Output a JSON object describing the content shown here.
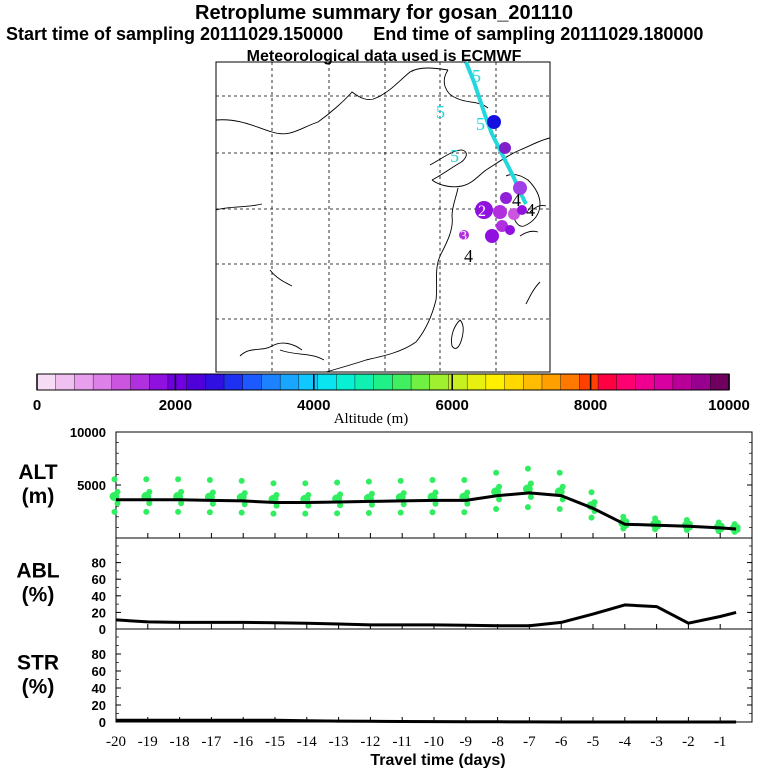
{
  "header": {
    "title": "Retroplume summary for gosan_201110",
    "start_label": "Start time of sampling 20111029.150000",
    "end_label": "End time of sampling 20111029.180000",
    "met_label": "Meteorological data used is ECMWF"
  },
  "map": {
    "levels": [
      {
        "label": "5",
        "kind": "track"
      },
      {
        "label": "5",
        "kind": "track"
      },
      {
        "label": "5",
        "kind": "track"
      },
      {
        "label": "5",
        "kind": "track"
      },
      {
        "label": "4",
        "kind": "mid"
      },
      {
        "label": "4",
        "kind": "mid"
      },
      {
        "label": "4",
        "kind": "low"
      },
      {
        "label": "3",
        "kind": "low"
      },
      {
        "label": "2",
        "kind": "low"
      }
    ],
    "track_color": "#22d8dc"
  },
  "colorbar": {
    "title": "Altitude (m)",
    "ticks": [
      "0",
      "2000",
      "4000",
      "6000",
      "8000",
      "10000"
    ],
    "min": 0,
    "max": 10000,
    "colors": [
      "#f7dcf5",
      "#f0c0f0",
      "#e8a0ee",
      "#dd80e8",
      "#cc55e0",
      "#b030e0",
      "#9010e0",
      "#7000e0",
      "#5000d8",
      "#3010e0",
      "#1e30f0",
      "#1c5aff",
      "#1c82ff",
      "#18a6ff",
      "#10c8ff",
      "#0ae4f0",
      "#08f0d4",
      "#10f0b0",
      "#20f088",
      "#40f060",
      "#70f040",
      "#a0f030",
      "#c8f020",
      "#e8f010",
      "#fff000",
      "#ffd800",
      "#ffbc00",
      "#ffa000",
      "#ff7800",
      "#ff4000",
      "#ff0040",
      "#ff0070",
      "#f00090",
      "#d800a0",
      "#b80098",
      "#980090",
      "#700060"
    ]
  },
  "chart_data": [
    {
      "type": "line",
      "name": "ALT",
      "title": "",
      "ylabel": "ALT\n(m)",
      "ylabel_lines": [
        "ALT",
        "(m)"
      ],
      "ylim": [
        0,
        10000
      ],
      "yticks": [
        "10000",
        "5000"
      ],
      "x": [
        -20,
        -19,
        -18,
        -17,
        -16,
        -15,
        -14,
        -13,
        -12,
        -11,
        -10,
        -9,
        -8,
        -7,
        -6,
        -5,
        -4,
        -3,
        -2,
        -1,
        -0.5
      ],
      "y": [
        3600,
        3600,
        3600,
        3550,
        3500,
        3350,
        3350,
        3400,
        3450,
        3500,
        3550,
        3550,
        4000,
        4250,
        4000,
        2800,
        1300,
        1200,
        1100,
        950,
        850
      ],
      "scatter_color": "#30ee60"
    },
    {
      "type": "line",
      "name": "ABL",
      "ylabel": "ABL\n(%)",
      "ylabel_lines": [
        "ABL",
        "(%)"
      ],
      "ylim": [
        0,
        100
      ],
      "yticks": [
        "80",
        "60",
        "40",
        "20",
        "0"
      ],
      "x": [
        -20,
        -19,
        -18,
        -17,
        -16,
        -15,
        -14,
        -13,
        -12,
        -11,
        -10,
        -9,
        -8,
        -7,
        -6,
        -5,
        -4,
        -3,
        -2,
        -1,
        -0.5
      ],
      "y": [
        11,
        8.5,
        8,
        8,
        8,
        7.5,
        7,
        6,
        5,
        5,
        5,
        4.5,
        4,
        4,
        8,
        18,
        29,
        27,
        7,
        15,
        20
      ]
    },
    {
      "type": "line",
      "name": "STR",
      "ylabel": "STR\n(%)",
      "ylabel_lines": [
        "STR",
        "(%)"
      ],
      "ylim": [
        0,
        100
      ],
      "yticks": [
        "80",
        "60",
        "40",
        "20",
        "0"
      ],
      "x": [
        -20,
        -19,
        -18,
        -17,
        -16,
        -15,
        -14,
        -13,
        -12,
        -11,
        -10,
        -9,
        -8,
        -7,
        -6,
        -5,
        -4,
        -3,
        -2,
        -1,
        -0.5
      ],
      "y": [
        2,
        2,
        2,
        2,
        2,
        2,
        1.5,
        1,
        0.8,
        0.6,
        0.5,
        0.3,
        0.2,
        0.1,
        0,
        0,
        0,
        0,
        0,
        0,
        0
      ]
    }
  ],
  "xaxis": {
    "label": "Travel time (days)",
    "ticks": [
      "-20",
      "-19",
      "-18",
      "-17",
      "-16",
      "-15",
      "-14",
      "-13",
      "-12",
      "-11",
      "-10",
      "-9",
      "-8",
      "-7",
      "-6",
      "-5",
      "-4",
      "-3",
      "-2",
      "-1"
    ],
    "range": [
      -20,
      0
    ]
  }
}
